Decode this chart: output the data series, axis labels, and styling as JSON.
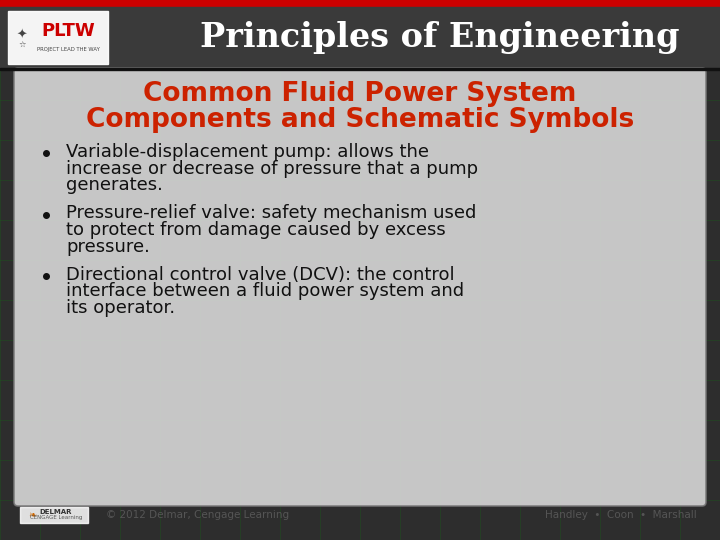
{
  "header_bg": "#3a3a3a",
  "header_top_stripe": "#cc0000",
  "header_title": "Principles of Engineering",
  "header_title_color": "#ffffff",
  "header_font_size": 24,
  "title_line1": "Common Fluid Power System",
  "title_line2": "Components and Schematic Symbols",
  "title_color": "#cc2200",
  "title_font_size": 19,
  "bullet_color": "#111111",
  "bullet_font_size": 13,
  "bullets": [
    "Variable-displacement pump: allows the\nincrease or decrease of pressure that a pump\ngenerates.",
    "Pressure-relief valve: safety mechanism used\nto protect from damage caused by excess\npressure.",
    "Directional control valve (DCV): the control\ninterface between a fluid power system and\nits operator."
  ],
  "footer_copyright": "© 2012 Delmar, Cengage Learning",
  "footer_right": "Handley  •  Coon  •  Marshall",
  "footer_color": "#555555",
  "footer_font_size": 7.5,
  "grid_color": "#1a5c1a",
  "accent_color": "#cc0000",
  "content_bg": "#dcdcdc",
  "content_alpha": 0.88
}
